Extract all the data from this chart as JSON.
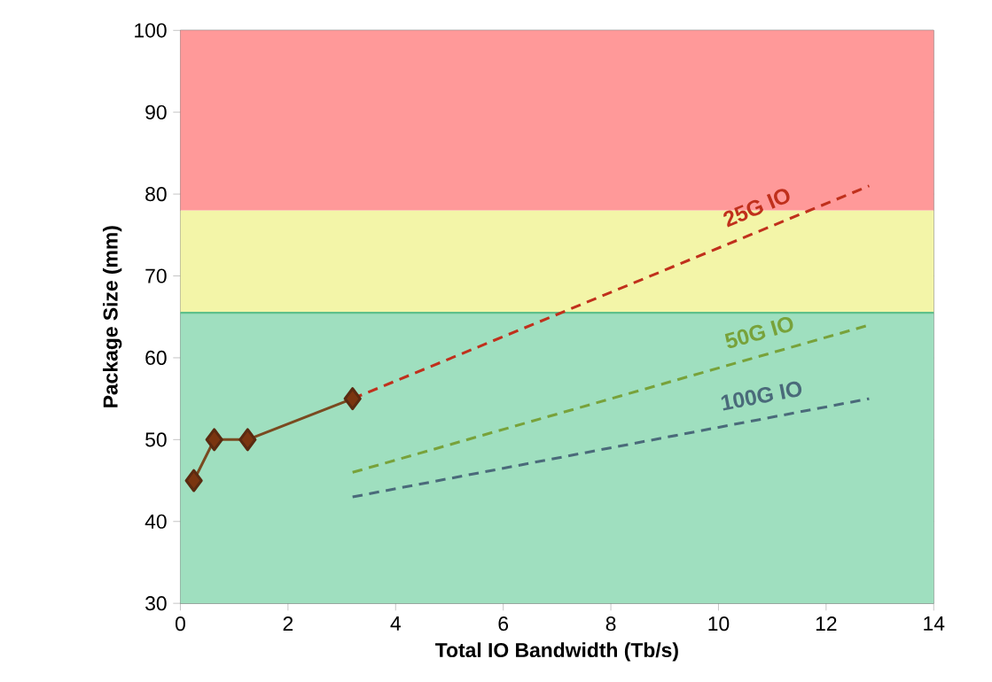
{
  "chart_data": {
    "type": "line",
    "xlabel": "Total IO Bandwidth (Tb/s)",
    "ylabel": "Package Size (mm)",
    "xlim": [
      0,
      14
    ],
    "ylim": [
      30,
      100
    ],
    "xticks": [
      0,
      2,
      4,
      6,
      8,
      10,
      12,
      14
    ],
    "yticks": [
      30,
      40,
      50,
      60,
      70,
      80,
      90,
      100
    ],
    "grid": "y",
    "bands": [
      {
        "axis": "y",
        "from": 30,
        "to": 65.5,
        "color": "#9fdfbf"
      },
      {
        "axis": "y",
        "from": 65.5,
        "to": 78,
        "color": "#f3f5a8"
      },
      {
        "axis": "y",
        "from": 78,
        "to": 100,
        "color": "#ff9999"
      }
    ],
    "ref_lines": [
      {
        "axis": "y",
        "value": 65.5,
        "color": "#5fc08a"
      }
    ],
    "series": [
      {
        "x": [
          0.25,
          0.63,
          1.25,
          3.2
        ],
        "values": [
          45,
          50,
          50,
          55
        ],
        "color": "#7a4a20",
        "marker": "diamond",
        "line_style": "solid"
      },
      {
        "name": "25G  IO",
        "x": [
          3.2,
          12.8
        ],
        "values": [
          55,
          81
        ],
        "color": "#c0301c",
        "marker": "none",
        "line_style": "dashed"
      },
      {
        "name": "50G  IO",
        "x": [
          3.2,
          12.8
        ],
        "values": [
          46,
          64
        ],
        "color": "#78a23a",
        "marker": "none",
        "line_style": "dashed"
      },
      {
        "name": "100G  IO",
        "x": [
          3.2,
          12.8
        ],
        "values": [
          43,
          55
        ],
        "color": "#4a6a7a",
        "marker": "none",
        "line_style": "dashed"
      }
    ]
  }
}
